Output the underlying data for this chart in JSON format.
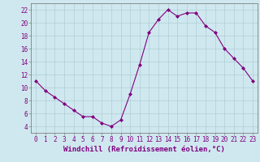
{
  "x": [
    0,
    1,
    2,
    3,
    4,
    5,
    6,
    7,
    8,
    9,
    10,
    11,
    12,
    13,
    14,
    15,
    16,
    17,
    18,
    19,
    20,
    21,
    22,
    23
  ],
  "y": [
    11,
    9.5,
    8.5,
    7.5,
    6.5,
    5.5,
    5.5,
    4.5,
    4.0,
    5.0,
    9.0,
    13.5,
    18.5,
    20.5,
    22.0,
    21.0,
    21.5,
    21.5,
    19.5,
    18.5,
    16.0,
    14.5,
    13.0,
    11.0
  ],
  "line_color": "#800080",
  "marker": "D",
  "marker_size": 2,
  "xlim_min": -0.5,
  "xlim_max": 23.5,
  "ylim_min": 3,
  "ylim_max": 23,
  "yticks": [
    4,
    6,
    8,
    10,
    12,
    14,
    16,
    18,
    20,
    22
  ],
  "xticks": [
    0,
    1,
    2,
    3,
    4,
    5,
    6,
    7,
    8,
    9,
    10,
    11,
    12,
    13,
    14,
    15,
    16,
    17,
    18,
    19,
    20,
    21,
    22,
    23
  ],
  "xlabel": "Windchill (Refroidissement éolien,°C)",
  "background_color": "#cfe8ef",
  "grid_color": "#b0cdd4",
  "line_axis_color": "#808080",
  "tick_label_color": "#800080",
  "xlabel_color": "#800080",
  "xlabel_fontsize": 6.5,
  "tick_fontsize": 5.5
}
